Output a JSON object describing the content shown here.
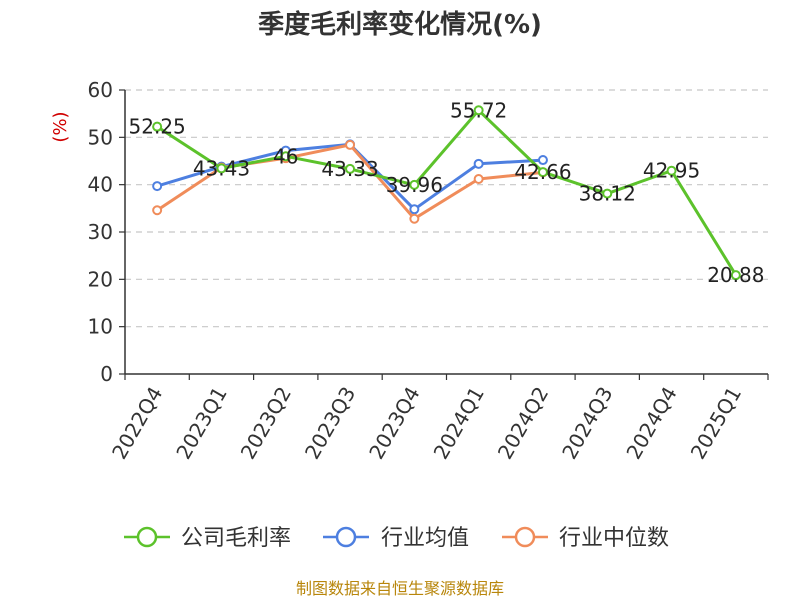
{
  "chart_data": {
    "type": "line",
    "title": "季度毛利率变化情况(%)",
    "ylabel": "(%)",
    "xlabel": "",
    "ylim": [
      0,
      60
    ],
    "yticks": [
      0,
      10,
      20,
      30,
      40,
      50,
      60
    ],
    "grid": "horizontal-dashed",
    "legend_position": "bottom",
    "categories": [
      "2022Q4",
      "2023Q1",
      "2023Q2",
      "2023Q3",
      "2023Q4",
      "2024Q1",
      "2024Q2",
      "2024Q3",
      "2024Q4",
      "2025Q1"
    ],
    "series": [
      {
        "name": "公司毛利率",
        "color": "#5cc22b",
        "values": [
          52.25,
          43.43,
          46,
          43.33,
          39.96,
          55.72,
          42.66,
          38.12,
          42.95,
          20.88
        ],
        "labels": [
          "52.25",
          "43.43",
          "46",
          "43.33",
          "39.96",
          "55.72",
          "42.66",
          "38.12",
          "42.95",
          "20.88"
        ]
      },
      {
        "name": "行业均值",
        "color": "#4d7fe0",
        "values": [
          39.7,
          43.8,
          47.2,
          48.5,
          34.8,
          44.4,
          45.2,
          null,
          null,
          null
        ]
      },
      {
        "name": "行业中位数",
        "color": "#f08c5a",
        "values": [
          34.6,
          43.6,
          45.6,
          48.4,
          32.8,
          41.2,
          42.6,
          null,
          null,
          null
        ]
      }
    ]
  },
  "source": "制图数据来自恒生聚源数据库"
}
